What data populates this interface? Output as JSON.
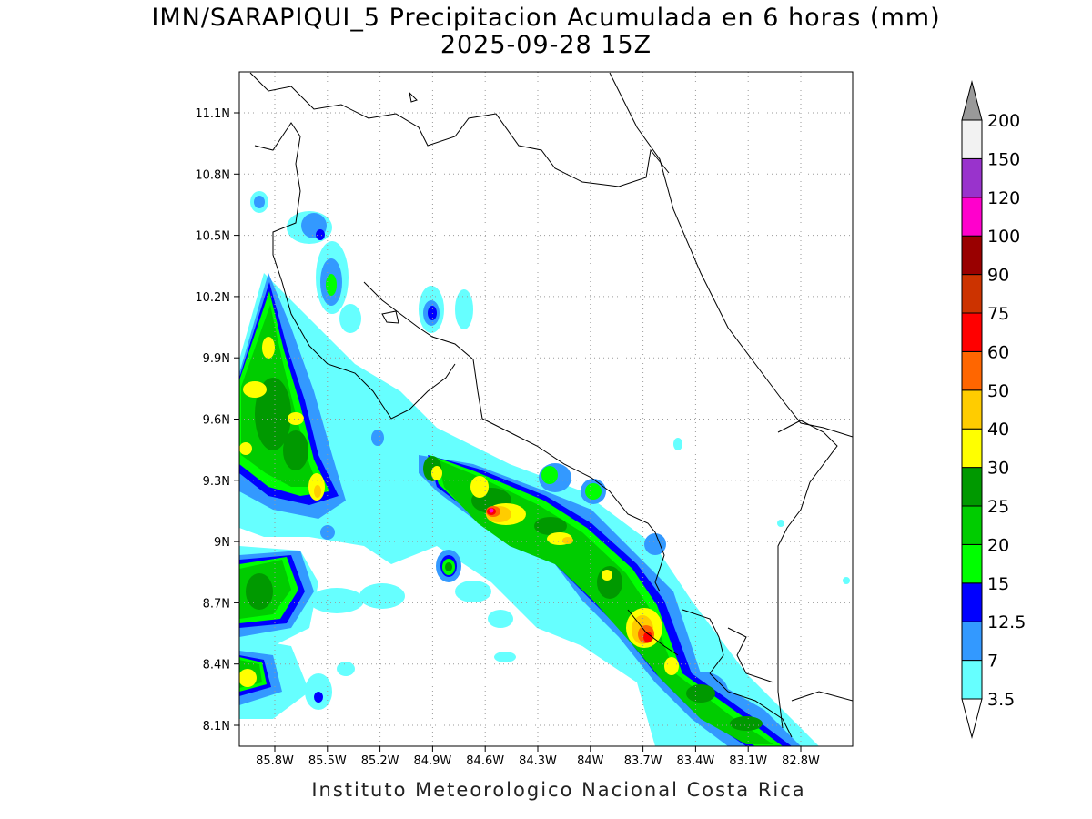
{
  "title_line1": "IMN/SARAPIQUI_5 Precipitacion Acumulada en 6 horas (mm)",
  "title_line2": "2025-09-28 15Z",
  "footer": "Instituto Meteorologico Nacional Costa Rica",
  "lat_ticks": [
    "11.1N",
    "10.8N",
    "10.5N",
    "10.2N",
    "9.9N",
    "9.6N",
    "9.3N",
    "9N",
    "8.7N",
    "8.4N",
    "8.1N"
  ],
  "lon_ticks": [
    "85.8W",
    "85.5W",
    "85.2W",
    "84.9W",
    "84.6W",
    "84.3W",
    "84W",
    "83.7W",
    "83.4W",
    "83.1W",
    "82.8W"
  ],
  "colorbar": {
    "levels": [
      "3.5",
      "7",
      "12.5",
      "15",
      "20",
      "25",
      "30",
      "40",
      "50",
      "60",
      "75",
      "90",
      "100",
      "120",
      "150",
      "200"
    ],
    "colors": [
      "#66ffff",
      "#3399ff",
      "#0000ff",
      "#00ff00",
      "#00cc00",
      "#009900",
      "#ffff00",
      "#ffcc00",
      "#ff6600",
      "#ff0000",
      "#cc3300",
      "#990000",
      "#ff00cc",
      "#9933cc",
      "#f2f2f2"
    ],
    "overflow_color": "#999999"
  }
}
